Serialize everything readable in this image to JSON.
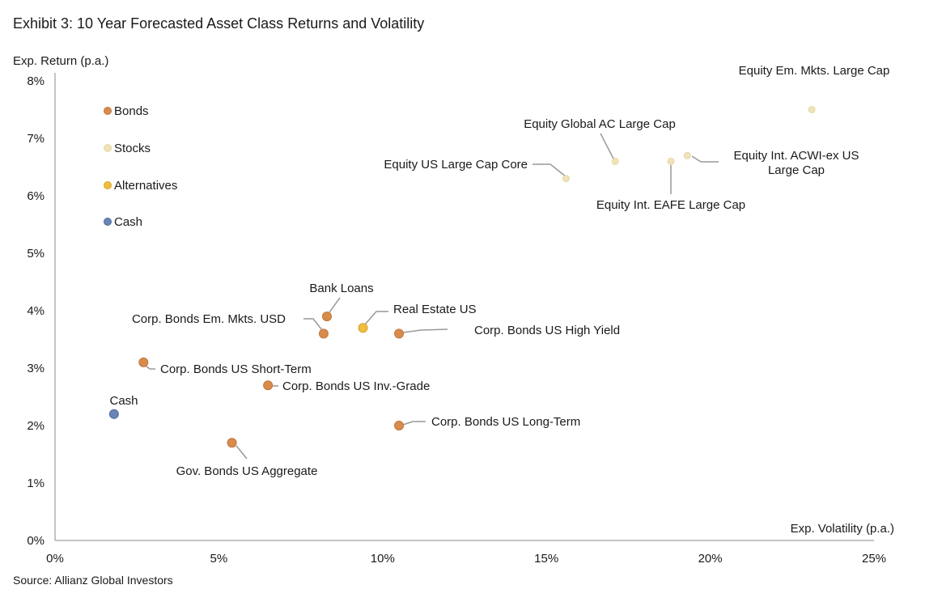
{
  "chart_data": {
    "type": "scatter",
    "title": "Exhibit 3: 10 Year Forecasted Asset Class Returns and Volatility",
    "xlabel": "Exp. Volatility (p.a.)",
    "ylabel": "Exp. Return (p.a.)",
    "xlim": [
      0,
      25
    ],
    "ylim": [
      0,
      8
    ],
    "xticks": [
      "0%",
      "5%",
      "10%",
      "15%",
      "20%",
      "25%"
    ],
    "yticks": [
      "0%",
      "1%",
      "2%",
      "3%",
      "4%",
      "5%",
      "6%",
      "7%",
      "8%"
    ],
    "legend": [
      {
        "name": "Bonds",
        "color": "#d98b4c"
      },
      {
        "name": "Stocks",
        "color": "#f0e3b8"
      },
      {
        "name": "Alternatives",
        "color": "#f0bd3c"
      },
      {
        "name": "Cash",
        "color": "#6a84b8"
      }
    ],
    "legend_position": "top-left",
    "points": [
      {
        "label": "Equity Em. Mkts. Large Cap",
        "x": 23.1,
        "y": 7.5,
        "group": "Stocks"
      },
      {
        "label": "Equity Global AC Large Cap",
        "x": 17.1,
        "y": 6.6,
        "group": "Stocks"
      },
      {
        "label": "Equity US Large Cap Core",
        "x": 15.6,
        "y": 6.3,
        "group": "Stocks"
      },
      {
        "label": "Equity Int. EAFE Large Cap",
        "x": 18.8,
        "y": 6.6,
        "group": "Stocks"
      },
      {
        "label": "Equity Int. ACWI-ex US Large Cap",
        "label_lines": [
          "Equity Int. ACWI-ex US",
          "Large Cap"
        ],
        "x": 19.3,
        "y": 6.7,
        "group": "Stocks"
      },
      {
        "label": "Bank Loans",
        "x": 8.3,
        "y": 3.9,
        "group": "Bonds"
      },
      {
        "label": "Corp. Bonds Em. Mkts. USD",
        "x": 8.2,
        "y": 3.6,
        "group": "Bonds"
      },
      {
        "label": "Real Estate US",
        "x": 9.4,
        "y": 3.7,
        "group": "Alternatives"
      },
      {
        "label": "Corp. Bonds US High Yield",
        "x": 10.5,
        "y": 3.6,
        "group": "Bonds"
      },
      {
        "label": "Corp. Bonds US Short-Term",
        "x": 2.7,
        "y": 3.1,
        "group": "Bonds"
      },
      {
        "label": "Corp. Bonds US Inv.-Grade",
        "x": 6.5,
        "y": 2.7,
        "group": "Bonds"
      },
      {
        "label": "Cash",
        "x": 1.8,
        "y": 2.2,
        "group": "Cash"
      },
      {
        "label": "Corp. Bonds US Long-Term",
        "x": 10.5,
        "y": 2.0,
        "group": "Bonds"
      },
      {
        "label": "Gov. Bonds US Aggregate",
        "x": 5.4,
        "y": 1.7,
        "group": "Bonds"
      }
    ],
    "source": "Source: Allianz Global Investors"
  }
}
